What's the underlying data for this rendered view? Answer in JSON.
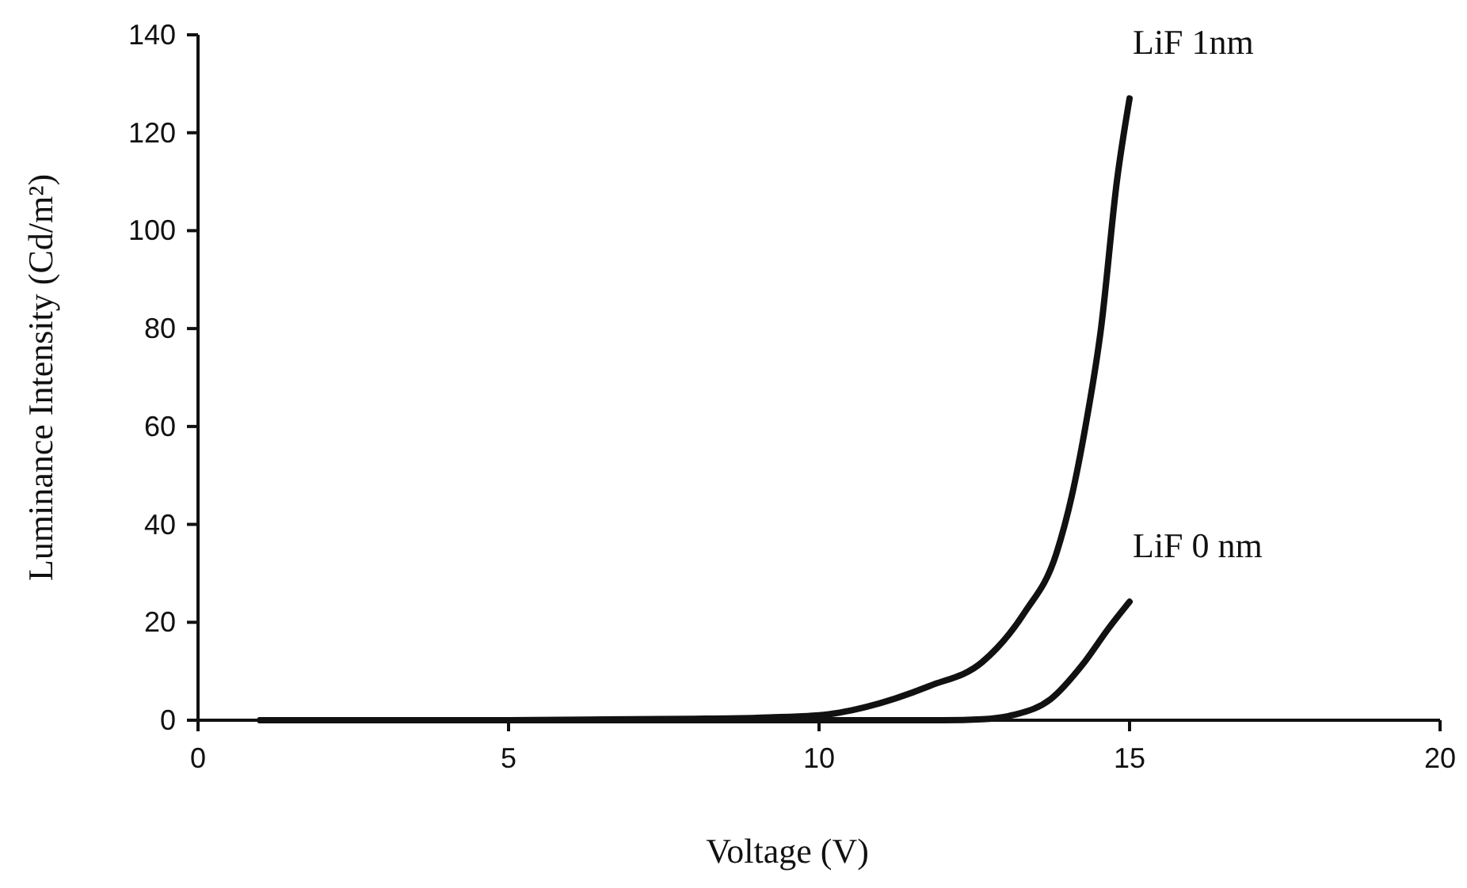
{
  "chart_data": {
    "type": "line",
    "xlabel": "Voltage (V)",
    "ylabel": "Luminance Intensity (Cd/m²)",
    "xlim": [
      0,
      20
    ],
    "xticks": [
      0,
      5,
      10,
      15,
      20
    ],
    "ylim": [
      0,
      140
    ],
    "yticks": [
      0,
      20,
      40,
      60,
      80,
      100,
      120,
      140
    ],
    "grid": false,
    "marker": "none",
    "line_style": "solid",
    "series": [
      {
        "name": "LiF 1nm",
        "color": "#111111",
        "x": [
          1,
          5,
          7,
          8,
          9,
          10,
          10.75,
          11.78,
          12.63,
          13.31,
          13.82,
          14.07,
          14.29,
          14.54,
          14.8,
          15
        ],
        "values": [
          0,
          0,
          0.2,
          0.3,
          0.5,
          1,
          2.7,
          7,
          11.9,
          22,
          34,
          45.8,
          60,
          80,
          110.5,
          127
        ]
      },
      {
        "name": "LiF 0 nm",
        "color": "#111111",
        "x": [
          1,
          5,
          10,
          12,
          12.63,
          13.14,
          13.73,
          14.24,
          14.67,
          15
        ],
        "values": [
          0,
          0,
          0,
          0,
          0.2,
          1.1,
          4.3,
          11.3,
          18.9,
          24.2
        ]
      }
    ]
  }
}
